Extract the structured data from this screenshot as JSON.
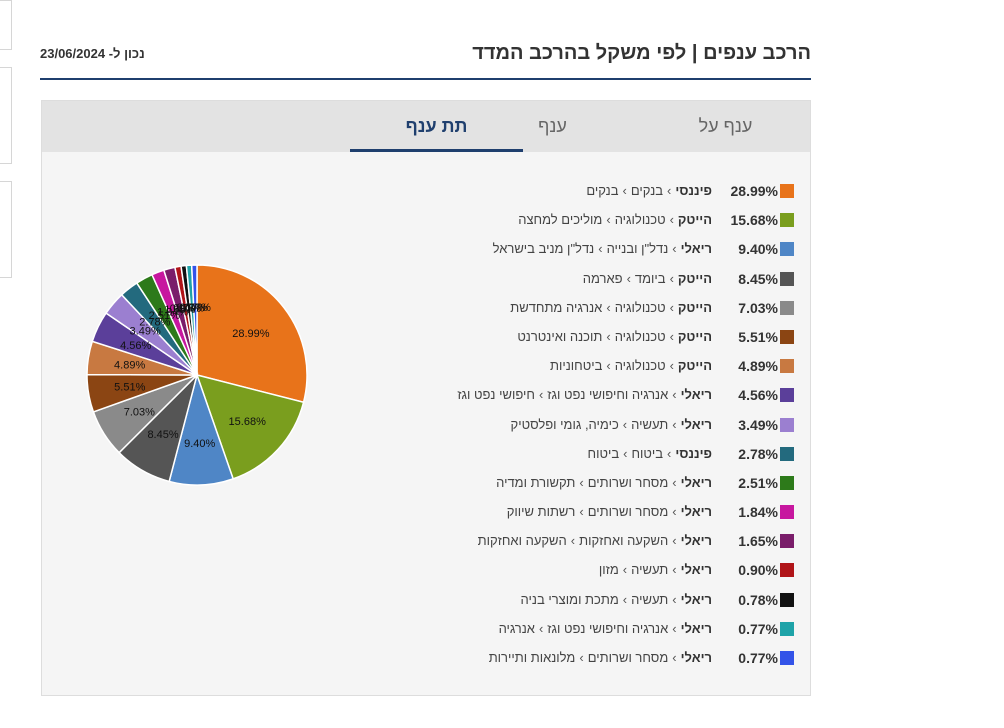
{
  "header": {
    "title": "הרכב ענפים | לפי משקל בהרכב המדד",
    "date": "נכון ל- 23/06/2024"
  },
  "tabs": [
    {
      "label": "ענף על",
      "active": false
    },
    {
      "label": "ענף",
      "active": false
    },
    {
      "label": "תת ענף",
      "active": true
    }
  ],
  "chart_data": {
    "type": "pie",
    "categories": [
      "פיננסי › בנקים › בנקים",
      "הייטק › טכנולוגיה › מוליכים למחצה",
      "ריאלי › נדל\"ן ובנייה › נדל\"ן מניב בישראל",
      "הייטק › ביומד › פארמה",
      "הייטק › טכנולוגיה › אנרגיה מתחדשת",
      "הייטק › טכנולוגיה › תוכנה ואינטרנט",
      "הייטק › טכנולוגיה › ביטחוניות",
      "ריאלי › אנרגיה וחיפושי נפט וגז › חיפושי נפט וגז",
      "ריאלי › תעשיה › כימיה, גומי ופלסטיק",
      "פיננסי › ביטוח › ביטוח",
      "ריאלי › מסחר ושרותים › תקשורת ומדיה",
      "ריאלי › מסחר ושרותים › רשתות שיווק",
      "ריאלי › השקעה ואחזקות › השקעה ואחזקות",
      "ריאלי › תעשיה › מזון",
      "ריאלי › תעשיה › מתכת ומוצרי בניה",
      "ריאלי › אנרגיה וחיפושי נפט וגז › אנרגיה",
      "ריאלי › מסחר ושרותים › מלונאות ותיירות"
    ],
    "values": [
      28.99,
      15.68,
      9.4,
      8.45,
      7.03,
      5.51,
      4.89,
      4.56,
      3.49,
      2.78,
      2.51,
      1.84,
      1.65,
      0.9,
      0.78,
      0.77,
      0.77
    ],
    "labels": [
      "28.99%",
      "15.68%",
      "9.40%",
      "8.45%",
      "7.03%",
      "5.51%",
      "4.89%",
      "4.56%",
      "3.49%",
      "2.78%",
      "2.51%",
      "1.84%",
      "1.65%",
      "0.90%",
      "0.78%",
      "0.77%",
      "0.77%"
    ],
    "colors": [
      "#e8731a",
      "#7a9e1e",
      "#4f86c6",
      "#555555",
      "#8a8a8a",
      "#8b4513",
      "#c87941",
      "#5b3f9a",
      "#9b7fd0",
      "#236a7e",
      "#2d7a1a",
      "#c7179f",
      "#7a1d6a",
      "#b01418",
      "#111111",
      "#1ea3a8",
      "#3353e8"
    ],
    "legend": [
      {
        "sector": "פיננסי",
        "branch": "בנקים",
        "sub": "בנקים",
        "pct": "28.99%"
      },
      {
        "sector": "הייטק",
        "branch": "טכנולוגיה",
        "sub": "מוליכים למחצה",
        "pct": "15.68%"
      },
      {
        "sector": "ריאלי",
        "branch": "נדל\"ן ובנייה",
        "sub": "נדל\"ן מניב בישראל",
        "pct": "9.40%"
      },
      {
        "sector": "הייטק",
        "branch": "ביומד",
        "sub": "פארמה",
        "pct": "8.45%"
      },
      {
        "sector": "הייטק",
        "branch": "טכנולוגיה",
        "sub": "אנרגיה מתחדשת",
        "pct": "7.03%"
      },
      {
        "sector": "הייטק",
        "branch": "טכנולוגיה",
        "sub": "תוכנה ואינטרנט",
        "pct": "5.51%"
      },
      {
        "sector": "הייטק",
        "branch": "טכנולוגיה",
        "sub": "ביטחוניות",
        "pct": "4.89%"
      },
      {
        "sector": "ריאלי",
        "branch": "אנרגיה וחיפושי נפט וגז",
        "sub": "חיפושי נפט וגז",
        "pct": "4.56%"
      },
      {
        "sector": "ריאלי",
        "branch": "תעשיה",
        "sub": "כימיה, גומי ופלסטיק",
        "pct": "3.49%"
      },
      {
        "sector": "פיננסי",
        "branch": "ביטוח",
        "sub": "ביטוח",
        "pct": "2.78%"
      },
      {
        "sector": "ריאלי",
        "branch": "מסחר ושרותים",
        "sub": "תקשורת ומדיה",
        "pct": "2.51%"
      },
      {
        "sector": "ריאלי",
        "branch": "מסחר ושרותים",
        "sub": "רשתות שיווק",
        "pct": "1.84%"
      },
      {
        "sector": "ריאלי",
        "branch": "השקעה ואחזקות",
        "sub": "השקעה ואחזקות",
        "pct": "1.65%"
      },
      {
        "sector": "ריאלי",
        "branch": "תעשיה",
        "sub": "מזון",
        "pct": "0.90%"
      },
      {
        "sector": "ריאלי",
        "branch": "תעשיה",
        "sub": "מתכת ומוצרי בניה",
        "pct": "0.78%"
      },
      {
        "sector": "ריאלי",
        "branch": "אנרגיה וחיפושי נפט וגז",
        "sub": "אנרגיה",
        "pct": "0.77%"
      },
      {
        "sector": "ריאלי",
        "branch": "מסחר ושרותים",
        "sub": "מלונאות ותיירות",
        "pct": "0.77%"
      }
    ]
  }
}
